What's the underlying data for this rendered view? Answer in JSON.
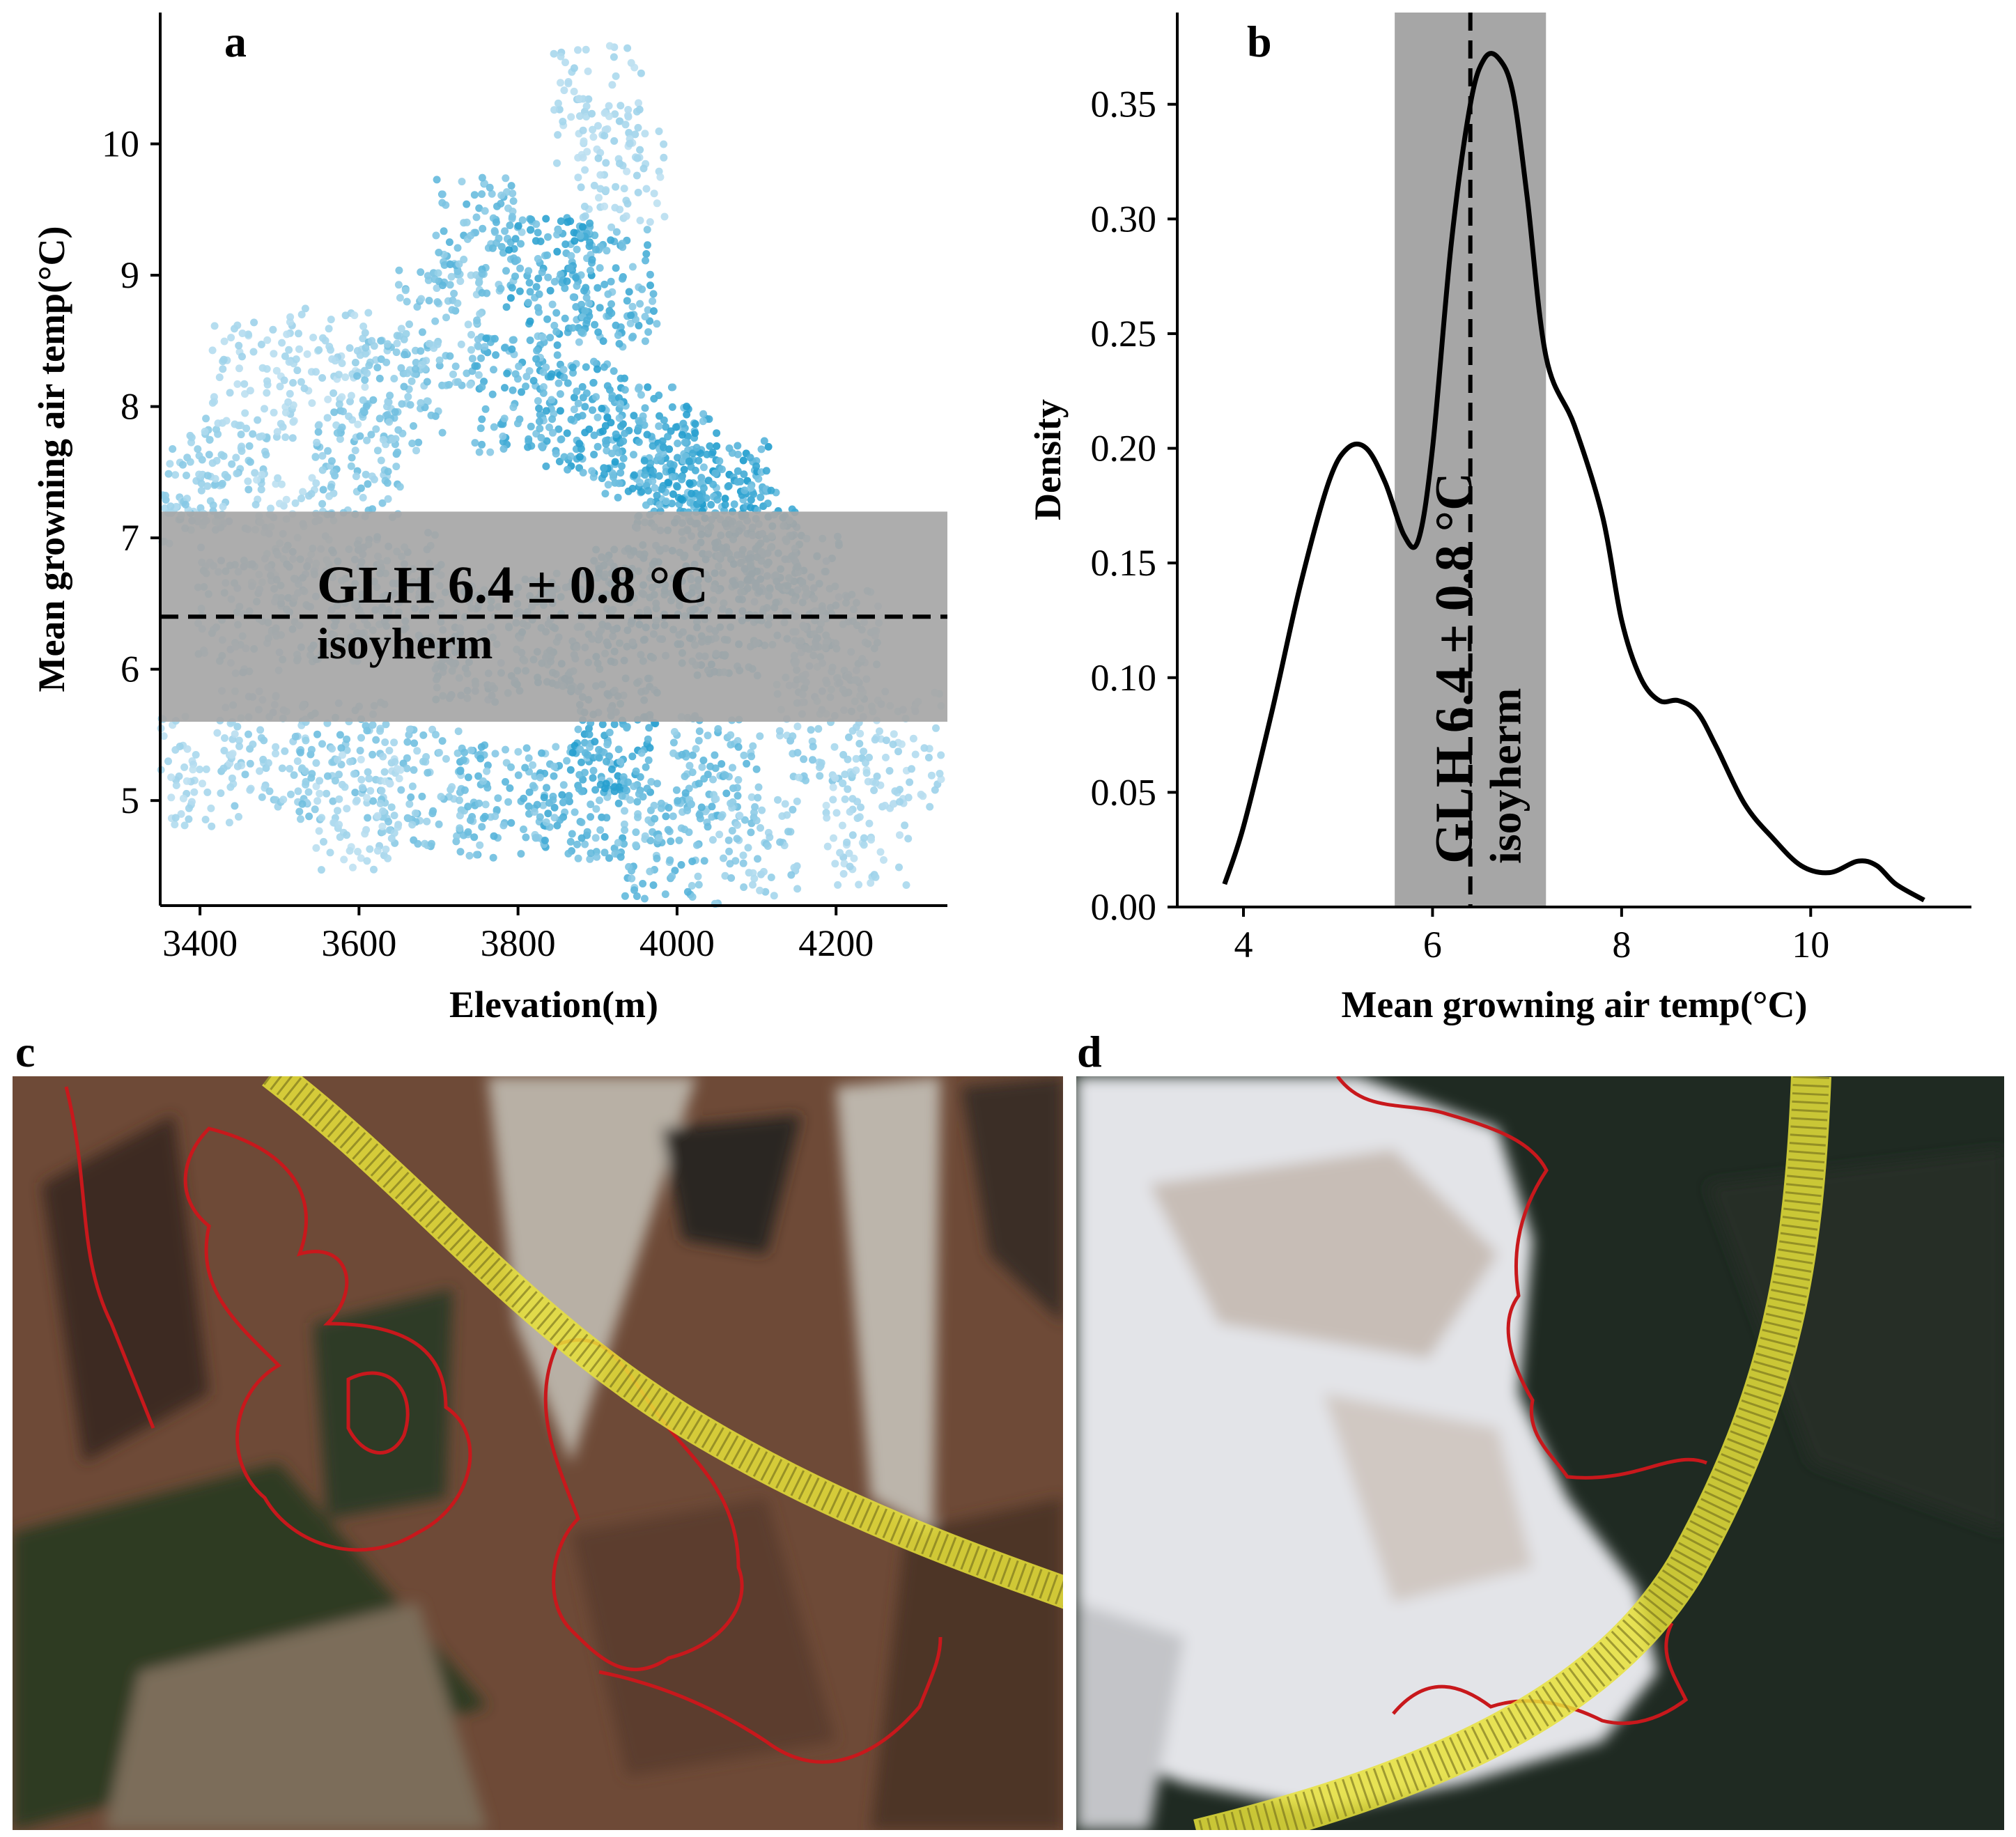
{
  "panels": {
    "a": "a",
    "b": "b",
    "c": "c",
    "d": "d"
  },
  "colors": {
    "band": "#a6a6a6",
    "point_low": "#e4f1fa",
    "point_high": "#1a9acc",
    "point_dark": "#2a5a7a",
    "line": "#000000",
    "map_c_base": "#6e4a37",
    "map_d_snow": "#e3e4e8",
    "map_d_forest": "#1f2a22",
    "boundary": "#c8181c",
    "isotherm_band": "#e8e23a"
  },
  "chart_data": [
    {
      "id": "a",
      "type": "scatter",
      "xlabel": "Elevation(m)",
      "ylabel": "Mean growning air temp(°C)",
      "xlim": [
        3350,
        4340
      ],
      "ylim": [
        4.2,
        11.0
      ],
      "xticks": [
        3400,
        3600,
        3800,
        4000,
        4200
      ],
      "yticks": [
        5,
        6,
        7,
        8,
        9,
        10
      ],
      "band": {
        "low": 5.6,
        "high": 7.2
      },
      "hline": 6.4,
      "annotation": [
        "GLH 6.4 ± 0.8 °C",
        "isoyherm"
      ],
      "grid": false,
      "clusters": [
        {
          "x": 3380,
          "y": 7.3,
          "w": 0.4
        },
        {
          "x": 3430,
          "y": 7.5,
          "w": 0.4
        },
        {
          "x": 3470,
          "y": 8.2,
          "w": 0.3
        },
        {
          "x": 3520,
          "y": 7.1,
          "w": 0.3
        },
        {
          "x": 3560,
          "y": 8.3,
          "w": 0.3
        },
        {
          "x": 3600,
          "y": 7.6,
          "w": 0.5
        },
        {
          "x": 3650,
          "y": 8.1,
          "w": 0.5
        },
        {
          "x": 3700,
          "y": 8.6,
          "w": 0.5
        },
        {
          "x": 3750,
          "y": 9.3,
          "w": 0.6
        },
        {
          "x": 3800,
          "y": 8.1,
          "w": 0.7
        },
        {
          "x": 3840,
          "y": 9.0,
          "w": 0.8
        },
        {
          "x": 3880,
          "y": 7.9,
          "w": 0.8
        },
        {
          "x": 3920,
          "y": 8.9,
          "w": 0.7
        },
        {
          "x": 3960,
          "y": 7.7,
          "w": 0.8
        },
        {
          "x": 4000,
          "y": 7.5,
          "w": 0.8
        },
        {
          "x": 4060,
          "y": 7.3,
          "w": 0.9
        },
        {
          "x": 4100,
          "y": 7.0,
          "w": 0.8
        },
        {
          "x": 4150,
          "y": 6.6,
          "w": 0.7
        },
        {
          "x": 4200,
          "y": 6.2,
          "w": 0.5
        },
        {
          "x": 3900,
          "y": 10.3,
          "w": 0.3
        },
        {
          "x": 3930,
          "y": 9.8,
          "w": 0.3
        },
        {
          "x": 3450,
          "y": 6.4,
          "w": 0.5
        },
        {
          "x": 3550,
          "y": 6.5,
          "w": 0.6
        },
        {
          "x": 3650,
          "y": 6.6,
          "w": 0.6
        },
        {
          "x": 3750,
          "y": 6.2,
          "w": 0.7
        },
        {
          "x": 3850,
          "y": 6.3,
          "w": 0.8
        },
        {
          "x": 3950,
          "y": 6.5,
          "w": 0.9
        },
        {
          "x": 4050,
          "y": 6.4,
          "w": 0.9
        },
        {
          "x": 3480,
          "y": 5.4,
          "w": 0.4
        },
        {
          "x": 3580,
          "y": 5.3,
          "w": 0.5
        },
        {
          "x": 3680,
          "y": 5.1,
          "w": 0.5
        },
        {
          "x": 3780,
          "y": 5.0,
          "w": 0.6
        },
        {
          "x": 3880,
          "y": 5.0,
          "w": 0.7
        },
        {
          "x": 3920,
          "y": 5.5,
          "w": 0.8
        },
        {
          "x": 3980,
          "y": 4.7,
          "w": 0.6
        },
        {
          "x": 4050,
          "y": 5.2,
          "w": 0.6
        },
        {
          "x": 4100,
          "y": 4.6,
          "w": 0.4
        },
        {
          "x": 4180,
          "y": 5.6,
          "w": 0.4
        },
        {
          "x": 4240,
          "y": 4.8,
          "w": 0.3
        },
        {
          "x": 4280,
          "y": 5.4,
          "w": 0.3
        },
        {
          "x": 3400,
          "y": 5.2,
          "w": 0.3
        },
        {
          "x": 3600,
          "y": 4.9,
          "w": 0.3
        }
      ]
    },
    {
      "id": "b",
      "type": "line",
      "xlabel": "Mean growning air temp(°C)",
      "ylabel": "Density",
      "xlim": [
        3.3,
        11.7
      ],
      "ylim": [
        0,
        0.39
      ],
      "xticks": [
        4,
        6,
        8,
        10
      ],
      "yticks": [
        0.0,
        0.05,
        0.1,
        0.15,
        0.2,
        0.25,
        0.3,
        0.35
      ],
      "ytick_labels": [
        "0.00",
        "0.05",
        "0.10",
        "0.15",
        "0.20",
        "0.25",
        "0.30",
        "0.35"
      ],
      "band": {
        "low": 5.6,
        "high": 7.2
      },
      "vline": 6.4,
      "annotation": [
        "GLH 6.4 ± 0.8 °C",
        "isoyherm"
      ],
      "grid": false,
      "x": [
        3.8,
        4.0,
        4.3,
        4.6,
        4.9,
        5.1,
        5.3,
        5.5,
        5.7,
        5.85,
        6.0,
        6.2,
        6.4,
        6.55,
        6.7,
        6.85,
        7.0,
        7.2,
        7.5,
        7.8,
        8.0,
        8.2,
        8.4,
        8.6,
        8.8,
        9.0,
        9.3,
        9.6,
        9.9,
        10.2,
        10.5,
        10.7,
        10.9,
        11.2
      ],
      "y": [
        0.01,
        0.035,
        0.085,
        0.14,
        0.185,
        0.2,
        0.2,
        0.185,
        0.162,
        0.16,
        0.2,
        0.29,
        0.35,
        0.37,
        0.37,
        0.355,
        0.31,
        0.24,
        0.21,
        0.17,
        0.125,
        0.1,
        0.09,
        0.09,
        0.085,
        0.07,
        0.045,
        0.03,
        0.018,
        0.015,
        0.02,
        0.018,
        0.01,
        0.003
      ]
    }
  ]
}
